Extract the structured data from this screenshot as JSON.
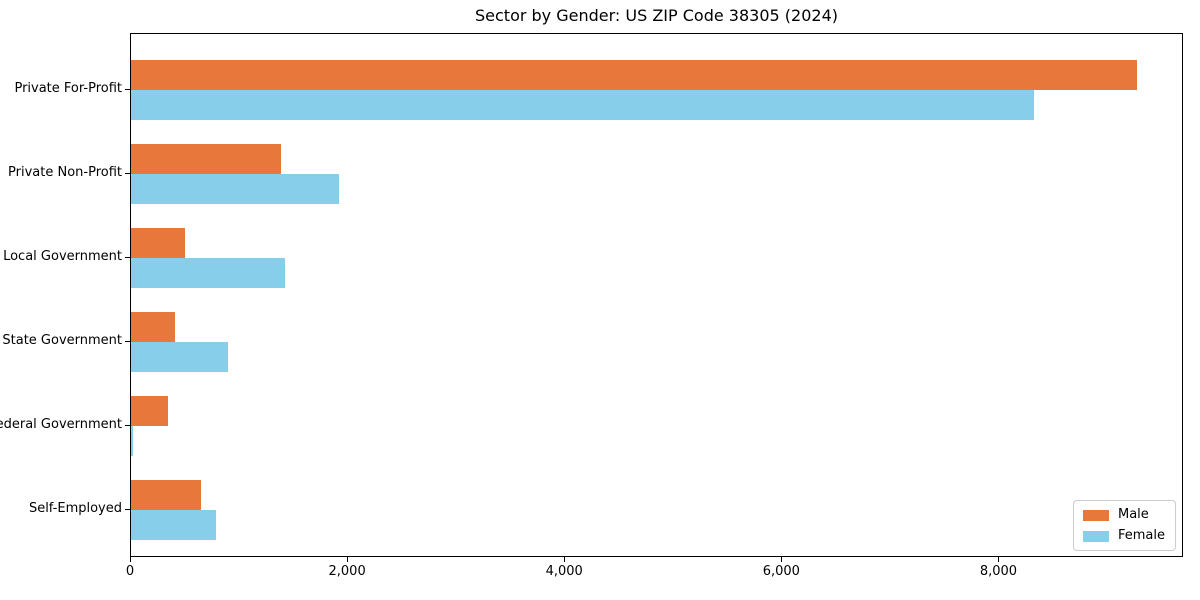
{
  "chart_data": {
    "type": "bar",
    "orientation": "horizontal",
    "title": "Sector by Gender: US ZIP Code 38305 (2024)",
    "categories": [
      "Private For-Profit",
      "Private Non-Profit",
      "Local Government",
      "State Government",
      "Federal Government",
      "Self-Employed"
    ],
    "series": [
      {
        "name": "Male",
        "color": "#e8773b",
        "values": [
          9270,
          1380,
          500,
          405,
          340,
          645
        ]
      },
      {
        "name": "Female",
        "color": "#87ceeb",
        "values": [
          8320,
          1920,
          1420,
          890,
          15,
          780
        ]
      }
    ],
    "xlabel": "",
    "ylabel": "",
    "xlim": [
      0,
      9700
    ],
    "xticks": [
      0,
      2000,
      4000,
      6000,
      8000
    ],
    "xtick_labels": [
      "0",
      "2,000",
      "4,000",
      "6,000",
      "8,000"
    ],
    "legend_position": "lower right",
    "grid": false,
    "colors": {
      "male": "#e8773b",
      "female": "#87ceeb",
      "spine": "#000000",
      "background": "#ffffff"
    }
  }
}
